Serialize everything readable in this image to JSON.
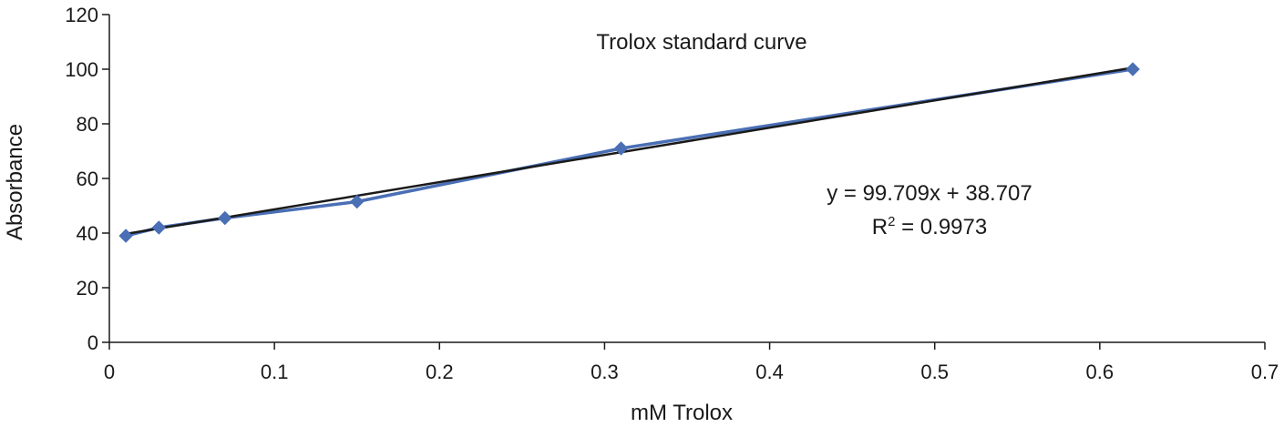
{
  "chart_data": {
    "type": "line",
    "title": "Trolox standard curve",
    "xlabel": "mM Trolox",
    "ylabel": "Absorbance",
    "xlim": [
      0,
      0.7
    ],
    "ylim": [
      0,
      120
    ],
    "x_ticks": [
      0,
      0.1,
      0.2,
      0.3,
      0.4,
      0.5,
      0.6,
      0.7
    ],
    "x_tick_labels": [
      "0",
      "0.1",
      "0.2",
      "0.3",
      "0.4",
      "0.5",
      "0.6",
      "0.7"
    ],
    "y_ticks": [
      0,
      20,
      40,
      60,
      80,
      100,
      120
    ],
    "y_tick_labels": [
      "0",
      "20",
      "40",
      "60",
      "80",
      "100",
      "120"
    ],
    "grid": false,
    "series": [
      {
        "color": "#4a6fb5",
        "marker": "diamond",
        "x": [
          0.01,
          0.03,
          0.07,
          0.15,
          0.31,
          0.62
        ],
        "y": [
          39,
          42,
          45.5,
          51.5,
          71,
          100
        ]
      }
    ],
    "trendline": {
      "type": "linear",
      "color": "#1a1a1a",
      "slope": 99.709,
      "intercept": 38.707,
      "x_range": [
        0.01,
        0.62
      ]
    },
    "annotations": {
      "equation": "y = 99.709x + 38.707",
      "r_squared_label": "R",
      "r_squared_sup": "2",
      "r_squared_value": " = 0.9973"
    }
  }
}
